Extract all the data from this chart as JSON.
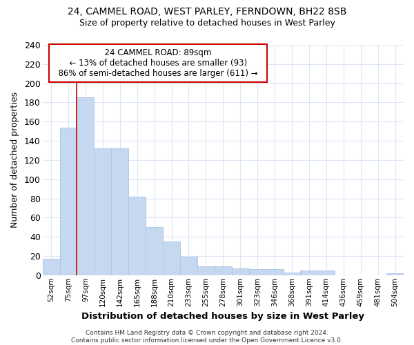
{
  "title1": "24, CAMMEL ROAD, WEST PARLEY, FERNDOWN, BH22 8SB",
  "title2": "Size of property relative to detached houses in West Parley",
  "xlabel": "Distribution of detached houses by size in West Parley",
  "ylabel": "Number of detached properties",
  "bar_color": "#c5d8f0",
  "bar_edge_color": "#aac4e8",
  "background_color": "#ffffff",
  "grid_color": "#dce6f5",
  "categories": [
    "52sqm",
    "75sqm",
    "97sqm",
    "120sqm",
    "142sqm",
    "165sqm",
    "188sqm",
    "210sqm",
    "233sqm",
    "255sqm",
    "278sqm",
    "301sqm",
    "323sqm",
    "346sqm",
    "368sqm",
    "391sqm",
    "414sqm",
    "436sqm",
    "459sqm",
    "481sqm",
    "504sqm"
  ],
  "values": [
    17,
    154,
    185,
    132,
    132,
    82,
    50,
    35,
    19,
    9,
    9,
    7,
    6,
    6,
    3,
    5,
    5,
    0,
    0,
    0,
    2
  ],
  "annotation_text": "  24 CAMMEL ROAD: 89sqm  \n  ← 13% of detached houses are smaller (93)  \n  86% of semi-detached houses are larger (611) →  ",
  "vline_color": "#cc0000",
  "vline_x_index": 2,
  "annotation_box_facecolor": "#ffffff",
  "annotation_box_edgecolor": "#cc0000",
  "footer_text": "Contains HM Land Registry data © Crown copyright and database right 2024.\nContains public sector information licensed under the Open Government Licence v3.0.",
  "ylim": [
    0,
    240
  ],
  "yticks": [
    0,
    20,
    40,
    60,
    80,
    100,
    120,
    140,
    160,
    180,
    200,
    220,
    240
  ]
}
